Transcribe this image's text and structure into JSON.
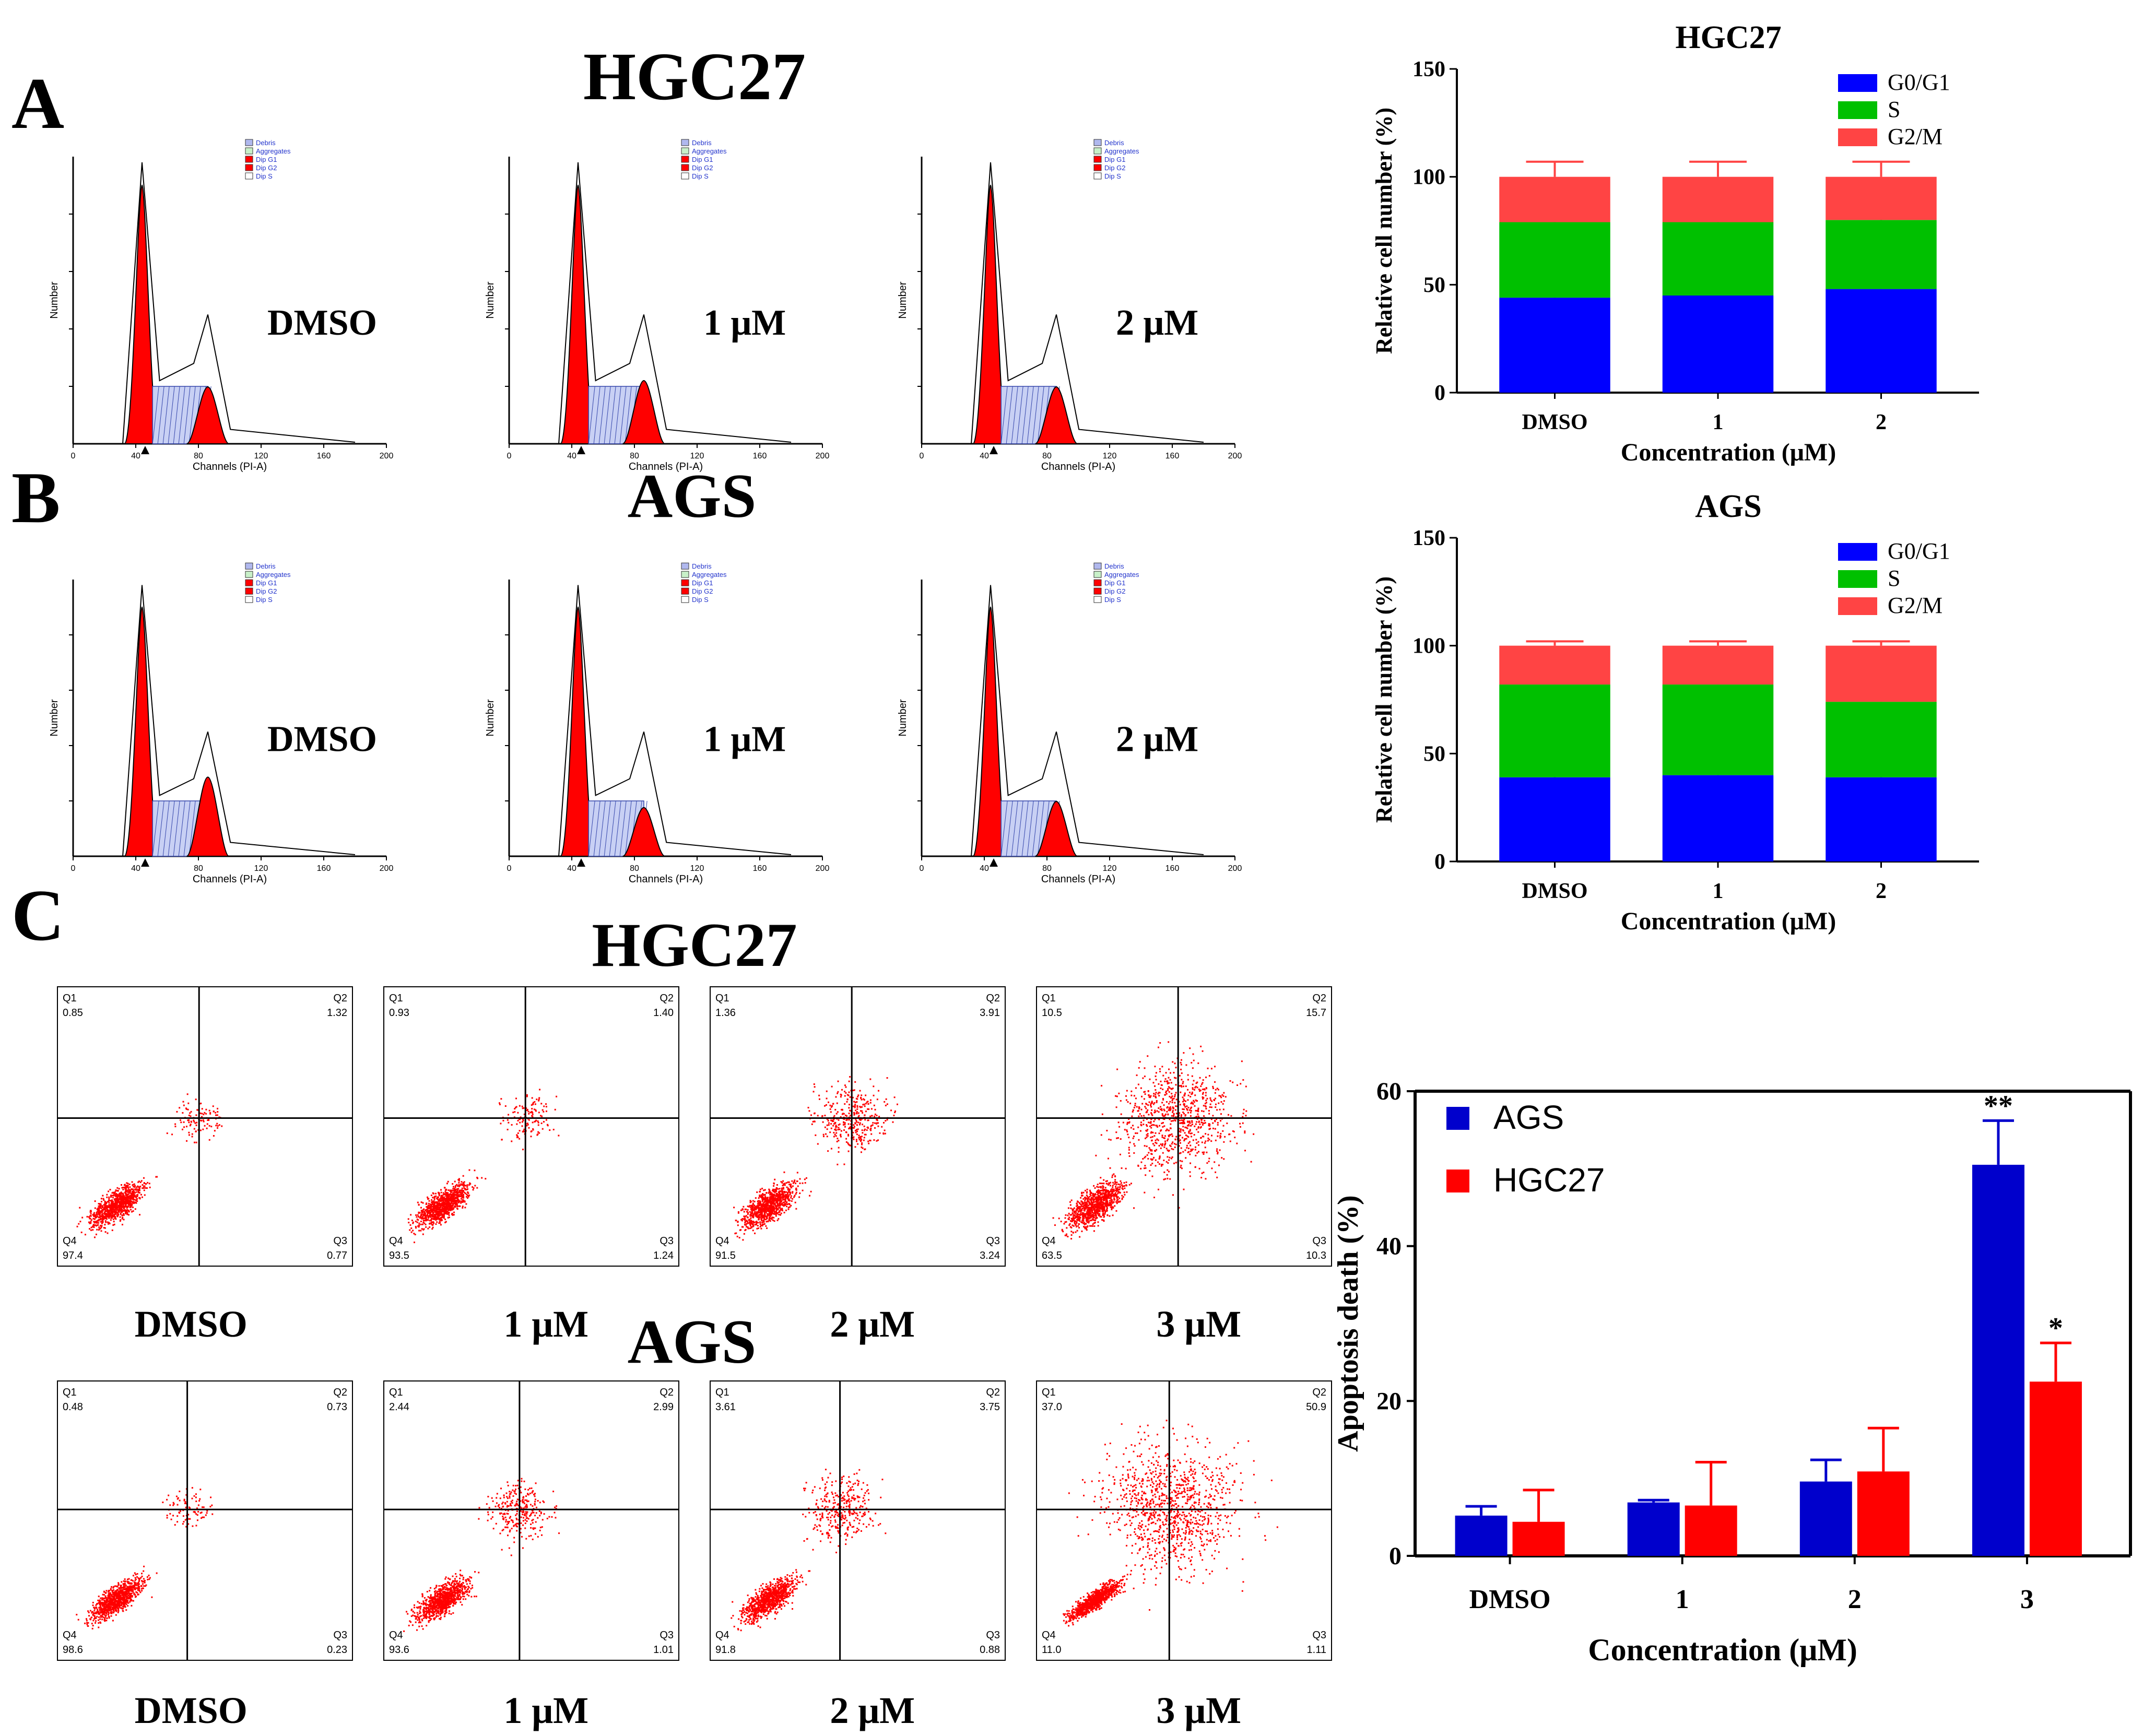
{
  "figure": {
    "panel_labels": [
      "A",
      "B",
      "C"
    ],
    "headings": {
      "a": "HGC27",
      "b": "AGS",
      "c_top": "HGC27",
      "c_bottom": "AGS"
    },
    "histogram_treatments": [
      "DMSO",
      "1 μM",
      "2 μM"
    ],
    "histogram_legend": [
      "Debris",
      "Aggregates",
      "Dip G1",
      "Dip G2",
      "Dip S"
    ],
    "histogram_axis": {
      "xlabel": "Channels (PI-A)",
      "ylabel": "Number",
      "xticks": [
        "0",
        "40",
        "80",
        "120",
        "160",
        "200"
      ]
    },
    "scatter_treatments": [
      "DMSO",
      "1 μM",
      "2 μM",
      "3 μM"
    ],
    "scatter_quadrant_labels": [
      "Q1",
      "Q2",
      "Q3",
      "Q4"
    ],
    "scatter_hgc27": [
      {
        "q1": "0.85",
        "q2": "1.32",
        "q3": "0.77",
        "q4": "97.4"
      },
      {
        "q1": "0.93",
        "q2": "1.40",
        "q3": "1.24",
        "q4": "93.5"
      },
      {
        "q1": "1.36",
        "q2": "3.91",
        "q3": "3.24",
        "q4": "91.5"
      },
      {
        "q1": "10.5",
        "q2": "15.7",
        "q3": "10.3",
        "q4": "63.5"
      }
    ],
    "scatter_ags": [
      {
        "q1": "0.48",
        "q2": "0.73",
        "q3": "0.23",
        "q4": "98.6"
      },
      {
        "q1": "2.44",
        "q2": "2.99",
        "q3": "1.01",
        "q4": "93.6"
      },
      {
        "q1": "3.61",
        "q2": "3.75",
        "q3": "0.88",
        "q4": "91.8"
      },
      {
        "q1": "37.0",
        "q2": "50.9",
        "q3": "1.11",
        "q4": "11.0"
      }
    ]
  },
  "chart_data": [
    {
      "type": "bar",
      "stacked": true,
      "title": "HGC27",
      "xlabel": "Concentration (μM)",
      "ylabel": "Relative cell number (%)",
      "categories": [
        "DMSO",
        "1",
        "2"
      ],
      "ylim": [
        0,
        150
      ],
      "yticks": [
        0,
        50,
        100,
        150
      ],
      "series": [
        {
          "name": "G0/G1",
          "values": [
            44,
            45,
            48
          ],
          "errors": [
            8,
            4,
            3
          ]
        },
        {
          "name": "S",
          "values": [
            35,
            34,
            32
          ],
          "errors": [
            1,
            3,
            4
          ]
        },
        {
          "name": "G2/M",
          "values": [
            21,
            21,
            20
          ],
          "errors": [
            7,
            7,
            7
          ]
        }
      ],
      "colors": [
        "#0000ff",
        "#00c000",
        "#ff4444"
      ],
      "legend": "top-right"
    },
    {
      "type": "bar",
      "stacked": true,
      "title": "AGS",
      "xlabel": "Concentration (μM)",
      "ylabel": "Relative cell number (%)",
      "categories": [
        "DMSO",
        "1",
        "2"
      ],
      "ylim": [
        0,
        150
      ],
      "yticks": [
        0,
        50,
        100,
        150
      ],
      "series": [
        {
          "name": "G0/G1",
          "values": [
            39,
            40,
            39
          ],
          "errors": [
            2,
            2,
            2
          ]
        },
        {
          "name": "S",
          "values": [
            43,
            42,
            35
          ],
          "errors": [
            1,
            1,
            1
          ]
        },
        {
          "name": "G2/M",
          "values": [
            18,
            18,
            26
          ],
          "errors": [
            2,
            2,
            2
          ]
        }
      ],
      "colors": [
        "#0000ff",
        "#00c000",
        "#ff4444"
      ],
      "legend": "top-right"
    },
    {
      "type": "bar",
      "stacked": false,
      "title": "",
      "xlabel": "Concentration (μM)",
      "ylabel": "Apoptosis death (%)",
      "categories": [
        "DMSO",
        "1",
        "2",
        "3"
      ],
      "ylim": [
        0,
        60
      ],
      "yticks": [
        0,
        20,
        40,
        60
      ],
      "series": [
        {
          "name": "AGS",
          "values": [
            5.2,
            6.9,
            9.6,
            50.5
          ],
          "errors": [
            1.2,
            0.3,
            2.8,
            5.7
          ]
        },
        {
          "name": "HGC27",
          "values": [
            4.4,
            6.5,
            10.9,
            22.5
          ],
          "errors": [
            4.1,
            5.6,
            5.6,
            5.0
          ]
        }
      ],
      "annotations": [
        "",
        "",
        "",
        "**|*"
      ],
      "colors": [
        "#0000cc",
        "#ff0000"
      ],
      "legend": "top-left"
    }
  ]
}
